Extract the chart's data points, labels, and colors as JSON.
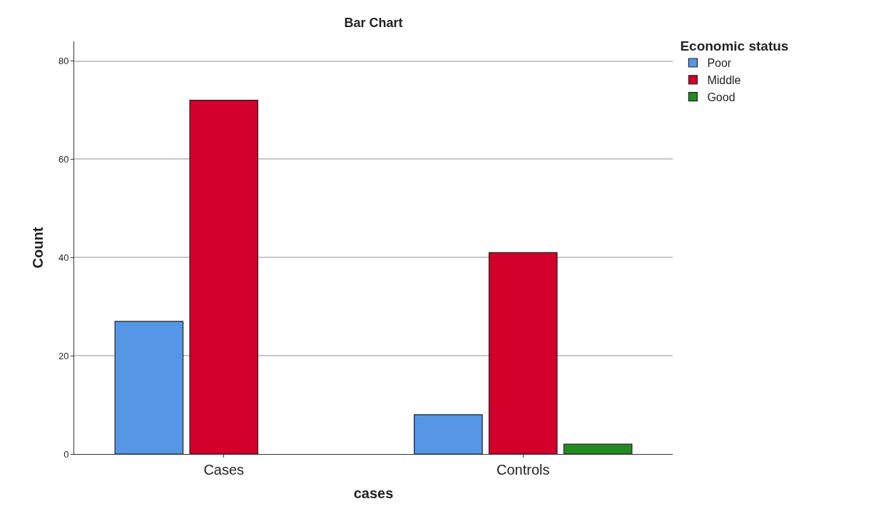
{
  "chart_data": {
    "type": "bar",
    "title": "Bar Chart",
    "xlabel": "cases",
    "ylabel": "Count",
    "legend_title": "Economic status",
    "categories": [
      "Cases",
      "Controls"
    ],
    "series": [
      {
        "name": "Poor",
        "color": "#5596e6",
        "values": [
          27,
          8
        ]
      },
      {
        "name": "Middle",
        "color": "#d2002a",
        "values": [
          72,
          41
        ]
      },
      {
        "name": "Good",
        "color": "#228b22",
        "values": [
          null,
          2
        ]
      }
    ],
    "ylim": [
      0,
      84
    ],
    "yticks": [
      0,
      20,
      40,
      60,
      80
    ],
    "grid": "y",
    "legend": "top right"
  }
}
